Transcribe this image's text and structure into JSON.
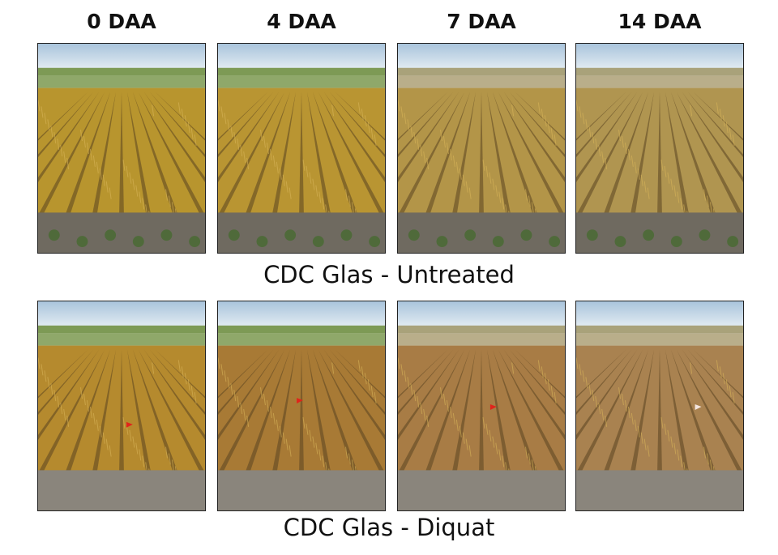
{
  "column_headers": [
    "0 DAA",
    "4 DAA",
    "7 DAA",
    "14 DAA"
  ],
  "rows": [
    {
      "caption": "CDC Glas - Untreated",
      "treatment": "untreated",
      "crop_colors": [
        "#b8952e",
        "#b99532",
        "#b39548",
        "#b09550"
      ]
    },
    {
      "caption": "CDC Glas - Diquat",
      "treatment": "diquat",
      "crop_colors": [
        "#b58a2e",
        "#a87a35",
        "#a87c45",
        "#a98250"
      ]
    }
  ],
  "flag_color": "#e0241b"
}
